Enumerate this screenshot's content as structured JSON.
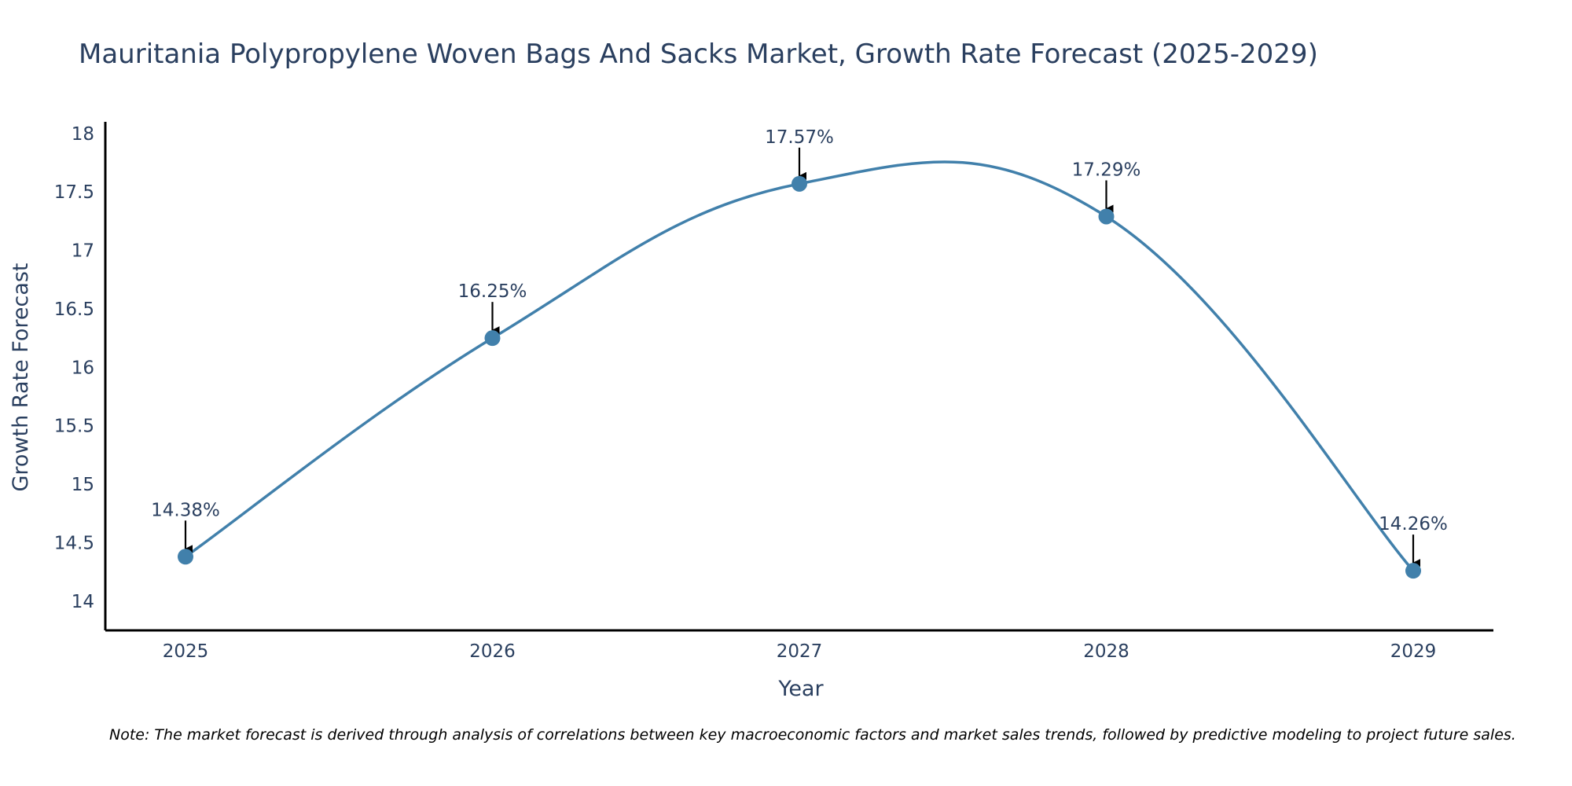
{
  "chart_data": {
    "type": "line",
    "title": "Mauritania Polypropylene Woven Bags And Sacks Market, Growth Rate Forecast (2025-2029)",
    "xlabel": "Year",
    "ylabel": "Growth Rate Forecast",
    "categories": [
      "2025",
      "2026",
      "2027",
      "2028",
      "2029"
    ],
    "values": [
      14.38,
      16.25,
      17.57,
      17.29,
      14.26
    ],
    "data_labels": [
      "14.38%",
      "16.25%",
      "17.57%",
      "17.29%",
      "14.26%"
    ],
    "yticks": [
      14,
      14.5,
      15,
      15.5,
      16,
      16.5,
      17,
      17.5,
      18
    ],
    "ytick_labels": [
      "14",
      "14.5",
      "15",
      "15.5",
      "16",
      "16.5",
      "17",
      "17.5",
      "18"
    ],
    "ylim": [
      13.75,
      18.1
    ],
    "grid": false,
    "smoothing": "spline",
    "line_color": "#4180ab",
    "marker_color": "#4180ab",
    "arrow_color": "#000000",
    "axis_color": "#000000",
    "note": "Note: The market forecast is derived through analysis of correlations between key macroeconomic factors and market sales trends, followed by predictive modeling to project future sales."
  }
}
